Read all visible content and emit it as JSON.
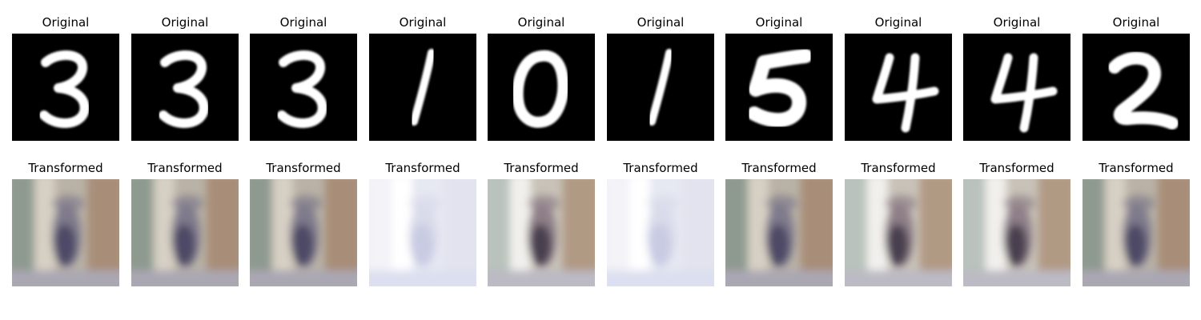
{
  "rows": [
    {
      "name": "original",
      "label": "Original",
      "items": [
        {
          "digit": "3"
        },
        {
          "digit": "3"
        },
        {
          "digit": "3"
        },
        {
          "digit": "1"
        },
        {
          "digit": "0"
        },
        {
          "digit": "1"
        },
        {
          "digit": "5"
        },
        {
          "digit": "4"
        },
        {
          "digit": "4"
        },
        {
          "digit": "2"
        }
      ]
    },
    {
      "name": "transformed",
      "label": "Transformed",
      "items": [
        {
          "variant": "dark"
        },
        {
          "variant": "dark"
        },
        {
          "variant": "dark"
        },
        {
          "variant": "pale"
        },
        {
          "variant": "medium"
        },
        {
          "variant": "pale"
        },
        {
          "variant": "dark"
        },
        {
          "variant": "medium"
        },
        {
          "variant": "medium"
        },
        {
          "variant": "dark"
        }
      ]
    }
  ]
}
